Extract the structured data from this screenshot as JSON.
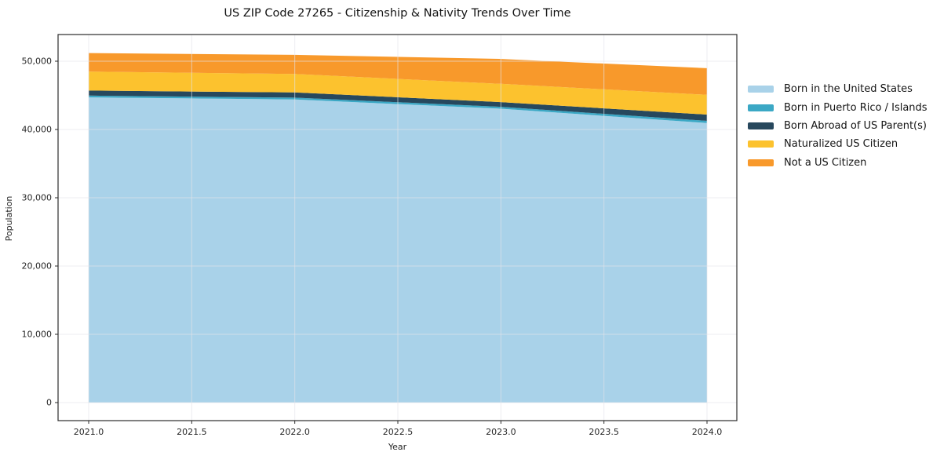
{
  "title": "US ZIP Code 27265 - Citizenship & Nativity Trends Over Time",
  "chart_data": {
    "type": "area",
    "stacked": true,
    "title": "US ZIP Code 27265 - Citizenship & Nativity Trends Over Time",
    "xlabel": "Year",
    "ylabel": "Population",
    "x": [
      2021,
      2022,
      2023,
      2024
    ],
    "xticks": [
      2021.0,
      2021.5,
      2022.0,
      2022.5,
      2023.0,
      2023.5,
      2024.0
    ],
    "yticks": [
      0,
      10000,
      20000,
      30000,
      40000,
      50000
    ],
    "ylim": [
      -2600,
      53900
    ],
    "grid": true,
    "legend_position": "right-outside",
    "series": [
      {
        "name": "Born in the United States",
        "color": "#a9d2e9",
        "values": [
          44700,
          44400,
          43050,
          40950
        ]
      },
      {
        "name": "Born in Puerto Rico / Islands",
        "color": "#3ba8c5",
        "values": [
          270,
          270,
          270,
          310
        ]
      },
      {
        "name": "Born Abroad of US Parent(s)",
        "color": "#27485d",
        "values": [
          730,
          760,
          690,
          920
        ]
      },
      {
        "name": "Naturalized US Citizen",
        "color": "#fcc22e",
        "values": [
          2780,
          2700,
          2680,
          2900
        ]
      },
      {
        "name": "Not a US Citizen",
        "color": "#f8992b",
        "values": [
          2720,
          2800,
          3640,
          3900
        ]
      }
    ]
  },
  "colors": {
    "spine": "#2b2b2b",
    "grid": "#e3e3ea",
    "text": "#262626"
  }
}
